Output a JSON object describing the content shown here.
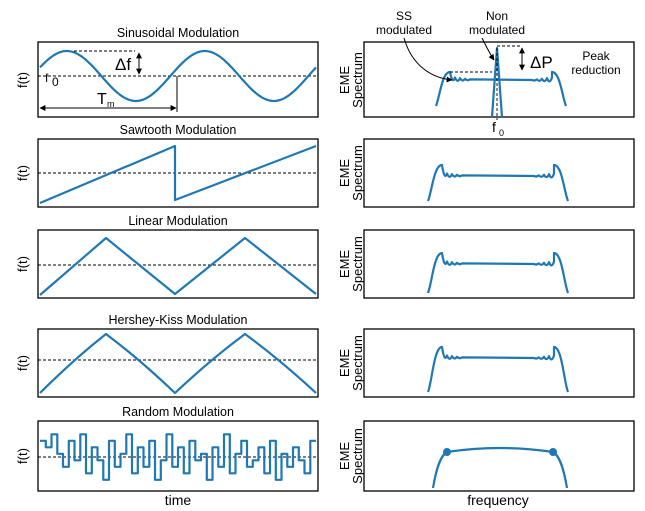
{
  "colors": {
    "waveform": "#1f78b4",
    "frame": "#000000",
    "background": "#ffffff"
  },
  "left_column": {
    "y_label": "f(t)",
    "x_label": "time",
    "panels": [
      {
        "key": "sinusoidal",
        "title": "Sinusoidal Modulation"
      },
      {
        "key": "sawtooth",
        "title": "Sawtooth Modulation"
      },
      {
        "key": "linear",
        "title": "Linear Modulation"
      },
      {
        "key": "hershey",
        "title": "Hershey-Kiss Modulation"
      },
      {
        "key": "random",
        "title": "Random Modulation"
      }
    ]
  },
  "right_column": {
    "y_label_top": "EME",
    "y_label_bottom": "Spectrum",
    "x_label": "frequency"
  },
  "annotations": {
    "delta_f": "Δf",
    "f0": "f",
    "f0_subscript": "0",
    "period": "T",
    "period_subscript": "m",
    "ss_modulated_line1": "SS",
    "ss_modulated_line2": "modulated",
    "non_modulated_line1": "Non",
    "non_modulated_line2": "modulated",
    "delta_p": "ΔP",
    "peak_line1": "Peak",
    "peak_line2": "reduction",
    "spectrum_f0": "f",
    "spectrum_f0_subscript": "0"
  }
}
